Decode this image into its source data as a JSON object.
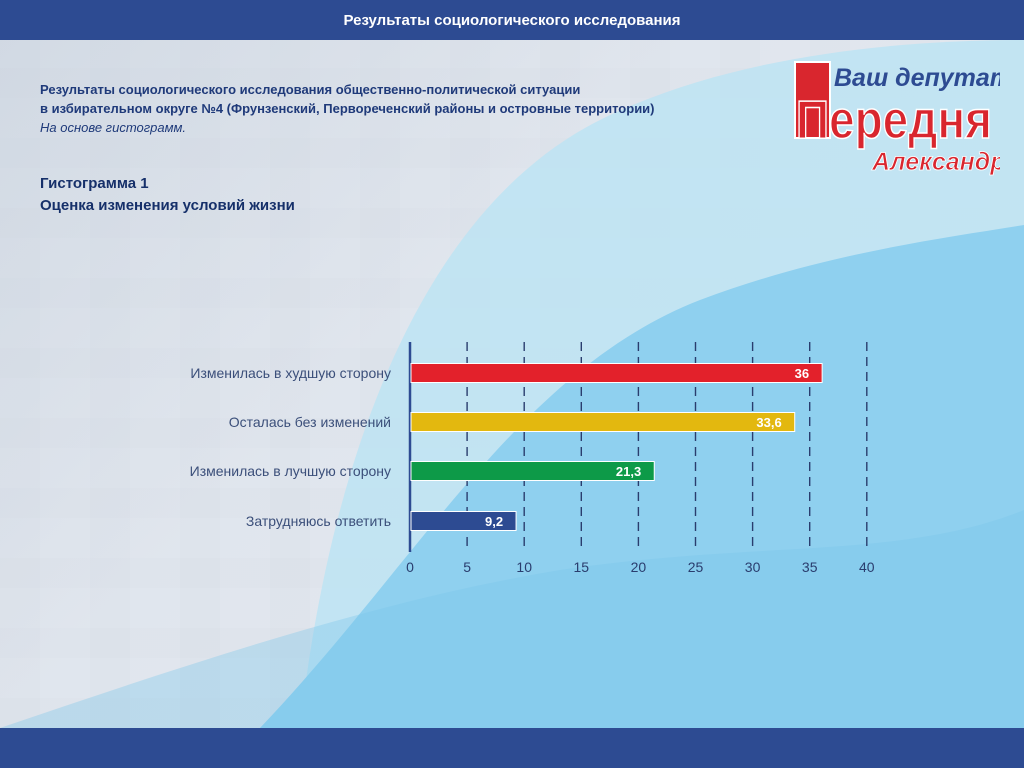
{
  "header": {
    "title": "Результаты социологического исследования"
  },
  "intro": {
    "line1": "Результаты социологического исследования общественно-политической ситуации",
    "line2": "в избирательном округе №4 (Фрунзенский, Первореченский районы и островные территории)",
    "subtitle": "На основе гистограмм."
  },
  "histogram": {
    "number": "Гистограмма 1",
    "title": "Оценка изменения условий жизни"
  },
  "logo": {
    "line1": "Ваш депутат",
    "line2": "Передня",
    "line3": "Александр"
  },
  "colors": {
    "header": "#2d4b92",
    "bar_worse": "#e3212b",
    "bar_same": "#e3b80f",
    "bar_better": "#0d9a48",
    "bar_undecided": "#2d4b92",
    "logo_red": "#d9262e"
  },
  "chart_data": {
    "type": "bar",
    "orientation": "horizontal",
    "categories": [
      "Изменилась в худшую сторону",
      "Осталась без изменений",
      "Изменилась в лучшую сторону",
      "Затрудняюсь ответить"
    ],
    "values": [
      36,
      33.6,
      21.3,
      9.2
    ],
    "value_labels": [
      "36",
      "33,6",
      "21,3",
      "9,2"
    ],
    "bar_colors": [
      "#e3212b",
      "#e3b80f",
      "#0d9a48",
      "#2d4b92"
    ],
    "xlim": [
      0,
      40
    ],
    "xticks": [
      0,
      5,
      10,
      15,
      20,
      25,
      30,
      35,
      40
    ],
    "grid": "dashed vertical"
  }
}
